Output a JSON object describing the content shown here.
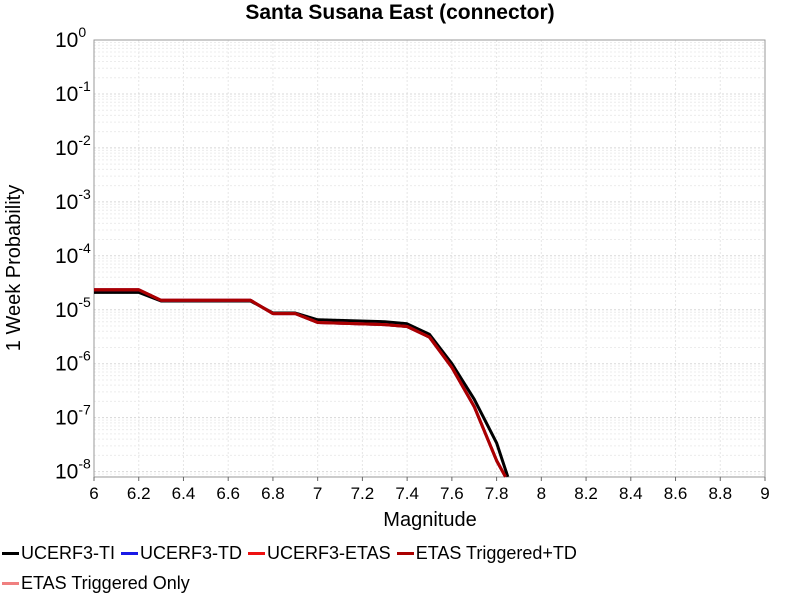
{
  "chart_data": {
    "type": "line",
    "title": "Santa Susana East (connector)",
    "xlabel": "Magnitude",
    "ylabel": "1 Week Probability",
    "xlim": [
      6,
      9
    ],
    "ylim_log10": [
      -8.1,
      0
    ],
    "yscale": "log",
    "grid": true,
    "legend_position": "bottom",
    "x_ticks": [
      "6",
      "6.2",
      "6.4",
      "6.6",
      "6.8",
      "7",
      "7.2",
      "7.4",
      "7.6",
      "7.8",
      "8",
      "8.2",
      "8.4",
      "8.6",
      "8.8",
      "9"
    ],
    "y_ticks": [
      {
        "base": "10",
        "exp": "0",
        "value": 1
      },
      {
        "base": "10",
        "exp": "-1",
        "value": 0.1
      },
      {
        "base": "10",
        "exp": "-2",
        "value": 0.01
      },
      {
        "base": "10",
        "exp": "-3",
        "value": 0.001
      },
      {
        "base": "10",
        "exp": "-4",
        "value": 0.0001
      },
      {
        "base": "10",
        "exp": "-5",
        "value": 1e-05
      },
      {
        "base": "10",
        "exp": "-6",
        "value": 1e-06
      },
      {
        "base": "10",
        "exp": "-7",
        "value": 1e-07
      },
      {
        "base": "10",
        "exp": "-8",
        "value": 1e-08
      }
    ],
    "series": [
      {
        "name": "UCERF3-TI",
        "color": "#000000",
        "x": [
          6.0,
          6.2,
          6.3,
          6.7,
          6.8,
          6.9,
          7.0,
          7.3,
          7.4,
          7.5,
          7.6,
          7.7,
          7.8,
          7.85
        ],
        "y": [
          2.1e-05,
          2.1e-05,
          1.45e-05,
          1.45e-05,
          8.7e-06,
          8.7e-06,
          6.5e-06,
          6e-06,
          5.5e-06,
          3.5e-06,
          1e-06,
          2.2e-07,
          3.4e-08,
          8e-09
        ]
      },
      {
        "name": "UCERF3-TD",
        "color": "#1a1ae6",
        "x": [
          6.0,
          6.2,
          6.3,
          6.7,
          6.8,
          6.9,
          7.0,
          7.3,
          7.4,
          7.5,
          7.6,
          7.7,
          7.8,
          7.84
        ],
        "y": [
          2.35e-05,
          2.35e-05,
          1.5e-05,
          1.5e-05,
          8.5e-06,
          8.5e-06,
          5.8e-06,
          5.3e-06,
          4.9e-06,
          3.1e-06,
          8.5e-07,
          1.6e-07,
          1.6e-08,
          8e-09
        ]
      },
      {
        "name": "UCERF3-ETAS",
        "color": "#ee1111",
        "x": [
          6.0,
          6.2,
          6.3,
          6.7,
          6.8,
          6.9,
          7.0,
          7.3,
          7.4,
          7.5,
          7.6,
          7.7,
          7.8,
          7.84
        ],
        "y": [
          2.35e-05,
          2.35e-05,
          1.5e-05,
          1.5e-05,
          8.5e-06,
          8.5e-06,
          5.8e-06,
          5.3e-06,
          4.9e-06,
          3.1e-06,
          8.5e-07,
          1.6e-07,
          1.6e-08,
          8e-09
        ]
      },
      {
        "name": "ETAS Triggered+TD",
        "color": "#aa0000",
        "x": [
          6.0,
          6.2,
          6.3,
          6.7,
          6.8,
          6.9,
          7.0,
          7.3,
          7.4,
          7.5,
          7.6,
          7.7,
          7.8,
          7.84
        ],
        "y": [
          2.35e-05,
          2.35e-05,
          1.5e-05,
          1.5e-05,
          8.5e-06,
          8.5e-06,
          5.8e-06,
          5.3e-06,
          4.9e-06,
          3.1e-06,
          8.5e-07,
          1.6e-07,
          1.6e-08,
          8e-09
        ]
      },
      {
        "name": "ETAS Triggered Only",
        "color": "#f08080",
        "x": [],
        "y": []
      }
    ]
  }
}
